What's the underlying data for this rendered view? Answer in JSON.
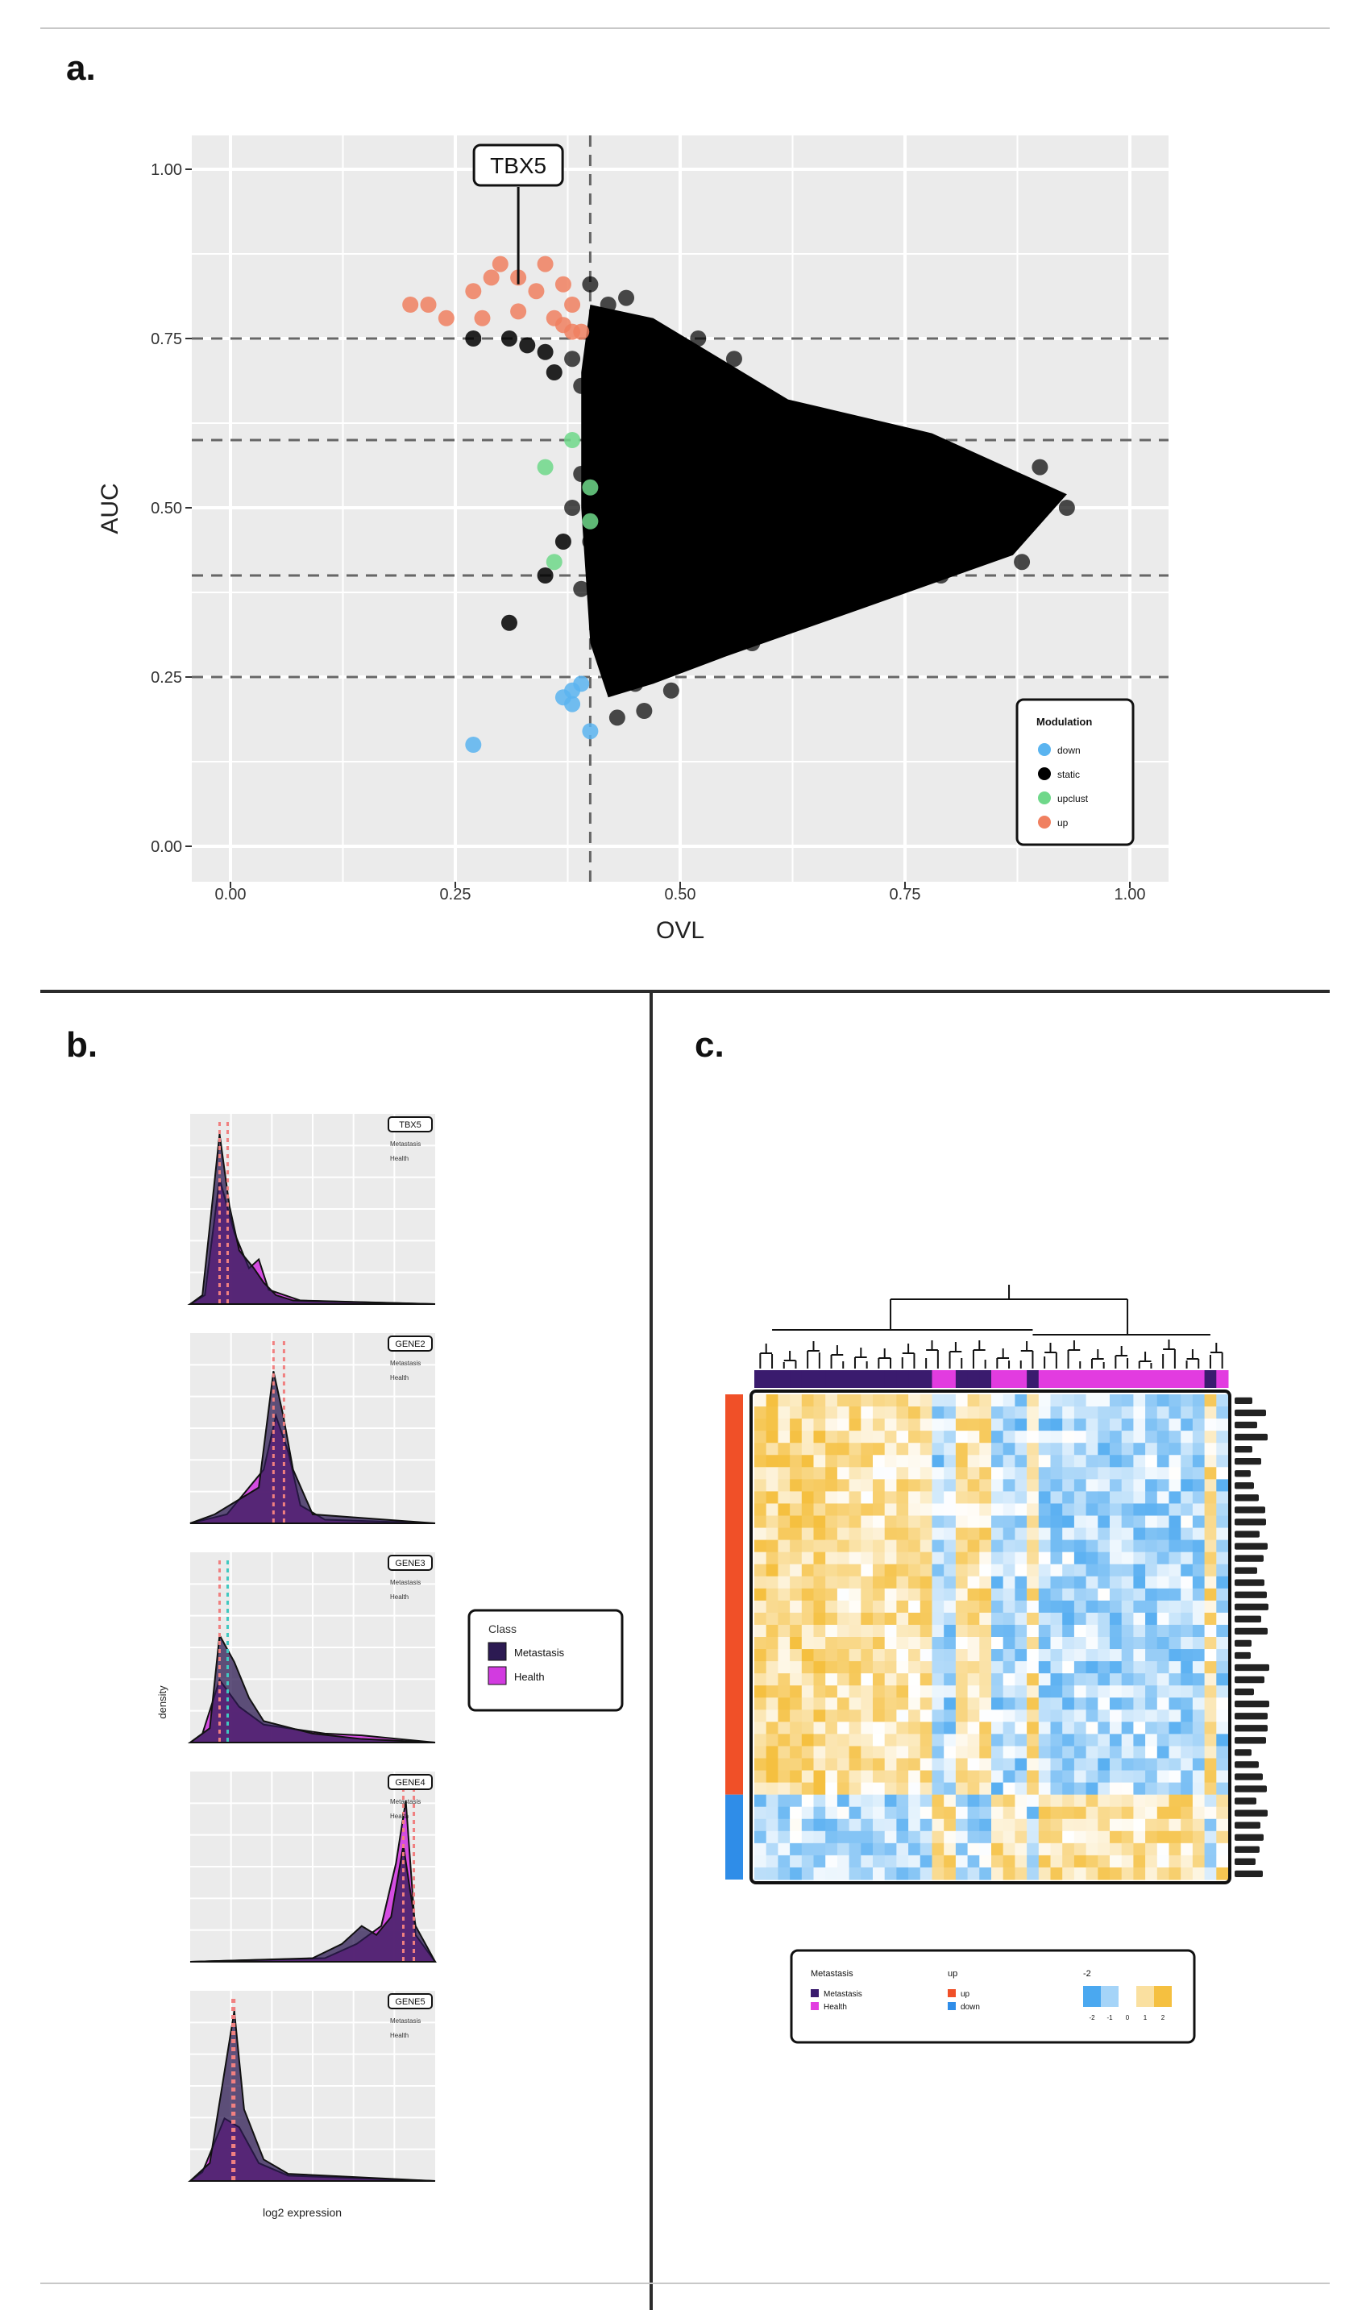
{
  "panels": {
    "a": {
      "letter": "a."
    },
    "b": {
      "letter": "b."
    },
    "c": {
      "letter": "c."
    }
  },
  "chart_data": [
    {
      "panel": "a",
      "type": "scatter",
      "title": "",
      "xlabel": "OVL",
      "ylabel": "AUC",
      "xlim": [
        0,
        1
      ],
      "ylim": [
        0,
        1
      ],
      "xticks": [
        "0.00",
        "0.25",
        "0.50",
        "0.75",
        "1.00"
      ],
      "yticks": [
        "0.00",
        "0.25",
        "0.50",
        "0.75",
        "1.00"
      ],
      "hlines": [
        0.25,
        0.4,
        0.6,
        0.75
      ],
      "vlines": [
        0.4
      ],
      "annotation": {
        "label": "TBX5",
        "x": 0.32,
        "y": 0.83
      },
      "legend": {
        "title": "Modulation",
        "position": "bottom-right",
        "entries": [
          "down",
          "static",
          "upclust",
          "up"
        ]
      },
      "colors": {
        "down": "#5ab4f0",
        "static": "#000000",
        "upclust": "#6fd88a",
        "up": "#f08060"
      },
      "series": [
        {
          "name": "up",
          "points": [
            [
              0.2,
              0.8
            ],
            [
              0.22,
              0.8
            ],
            [
              0.24,
              0.78
            ],
            [
              0.27,
              0.82
            ],
            [
              0.29,
              0.84
            ],
            [
              0.3,
              0.86
            ],
            [
              0.28,
              0.78
            ],
            [
              0.32,
              0.84
            ],
            [
              0.34,
              0.82
            ],
            [
              0.35,
              0.86
            ],
            [
              0.32,
              0.79
            ],
            [
              0.36,
              0.78
            ],
            [
              0.37,
              0.83
            ],
            [
              0.37,
              0.77
            ],
            [
              0.38,
              0.8
            ],
            [
              0.39,
              0.76
            ],
            [
              0.38,
              0.76
            ]
          ]
        },
        {
          "name": "static",
          "points": [
            [
              0.27,
              0.75
            ],
            [
              0.31,
              0.75
            ],
            [
              0.33,
              0.74
            ],
            [
              0.35,
              0.73
            ],
            [
              0.31,
              0.33
            ],
            [
              0.35,
              0.4
            ],
            [
              0.36,
              0.7
            ],
            [
              0.37,
              0.45
            ]
          ]
        },
        {
          "name": "upclust",
          "points": [
            [
              0.35,
              0.56
            ],
            [
              0.38,
              0.6
            ],
            [
              0.4,
              0.53
            ],
            [
              0.36,
              0.42
            ],
            [
              0.4,
              0.48
            ]
          ]
        },
        {
          "name": "down",
          "points": [
            [
              0.27,
              0.15
            ],
            [
              0.37,
              0.22
            ],
            [
              0.38,
              0.21
            ],
            [
              0.39,
              0.24
            ],
            [
              0.38,
              0.23
            ],
            [
              0.4,
              0.17
            ]
          ]
        }
      ],
      "cloud_outline": [
        [
          0.4,
          0.8
        ],
        [
          0.47,
          0.78
        ],
        [
          0.62,
          0.66
        ],
        [
          0.78,
          0.61
        ],
        [
          0.93,
          0.52
        ],
        [
          0.87,
          0.43
        ],
        [
          0.7,
          0.35
        ],
        [
          0.55,
          0.28
        ],
        [
          0.47,
          0.24
        ],
        [
          0.42,
          0.22
        ],
        [
          0.4,
          0.3
        ],
        [
          0.39,
          0.5
        ],
        [
          0.39,
          0.7
        ]
      ],
      "cloud_fringe": [
        [
          0.4,
          0.83
        ],
        [
          0.42,
          0.8
        ],
        [
          0.44,
          0.81
        ],
        [
          0.38,
          0.72
        ],
        [
          0.39,
          0.68
        ],
        [
          0.41,
          0.62
        ],
        [
          0.39,
          0.55
        ],
        [
          0.38,
          0.5
        ],
        [
          0.4,
          0.45
        ],
        [
          0.39,
          0.38
        ],
        [
          0.41,
          0.3
        ],
        [
          0.42,
          0.27
        ],
        [
          0.45,
          0.24
        ],
        [
          0.49,
          0.23
        ],
        [
          0.43,
          0.19
        ],
        [
          0.46,
          0.2
        ],
        [
          0.58,
          0.3
        ],
        [
          0.65,
          0.63
        ],
        [
          0.72,
          0.6
        ],
        [
          0.84,
          0.55
        ],
        [
          0.9,
          0.56
        ],
        [
          0.93,
          0.5
        ],
        [
          0.88,
          0.42
        ],
        [
          0.79,
          0.4
        ],
        [
          0.52,
          0.75
        ],
        [
          0.56,
          0.72
        ]
      ]
    },
    {
      "panel": "b",
      "type": "area",
      "title": "",
      "xlabel": "log2 expression",
      "ylabel": "density",
      "legend": {
        "title": "Class",
        "position": "right",
        "entries": [
          "Metastasis",
          "Health"
        ]
      },
      "colors": {
        "Metastasis": "#2c1a52",
        "Health": "#d23be0"
      },
      "facets": [
        {
          "strip": "TBX5",
          "vline_colors": [
            "#f08080",
            "#f08080"
          ],
          "metastasis": [
            [
              0,
              0
            ],
            [
              0.05,
              0.05
            ],
            [
              0.12,
              0.95
            ],
            [
              0.16,
              0.55
            ],
            [
              0.2,
              0.3
            ],
            [
              0.26,
              0.2
            ],
            [
              0.3,
              0.12
            ],
            [
              0.35,
              0.05
            ],
            [
              0.42,
              0.02
            ],
            [
              1,
              0
            ]
          ],
          "health": [
            [
              0,
              0
            ],
            [
              0.06,
              0.05
            ],
            [
              0.12,
              0.7
            ],
            [
              0.18,
              0.4
            ],
            [
              0.24,
              0.2
            ],
            [
              0.28,
              0.25
            ],
            [
              0.32,
              0.08
            ],
            [
              0.45,
              0.02
            ],
            [
              1,
              0
            ]
          ]
        },
        {
          "strip": "GENE2",
          "vline_colors": [
            "#f08080",
            "#f08080"
          ],
          "metastasis": [
            [
              0,
              0
            ],
            [
              0.1,
              0.05
            ],
            [
              0.28,
              0.2
            ],
            [
              0.34,
              0.85
            ],
            [
              0.38,
              0.6
            ],
            [
              0.42,
              0.3
            ],
            [
              0.5,
              0.05
            ],
            [
              1,
              0
            ]
          ],
          "health": [
            [
              0,
              0
            ],
            [
              0.15,
              0.05
            ],
            [
              0.3,
              0.3
            ],
            [
              0.35,
              0.6
            ],
            [
              0.4,
              0.4
            ],
            [
              0.45,
              0.1
            ],
            [
              0.55,
              0.02
            ],
            [
              1,
              0
            ]
          ]
        },
        {
          "strip": "GENE3",
          "vline_colors": [
            "#f08080",
            "#40c8c0"
          ],
          "metastasis": [
            [
              0,
              0
            ],
            [
              0.08,
              0.08
            ],
            [
              0.12,
              0.6
            ],
            [
              0.18,
              0.45
            ],
            [
              0.24,
              0.25
            ],
            [
              0.3,
              0.12
            ],
            [
              0.5,
              0.05
            ],
            [
              0.7,
              0.02
            ],
            [
              1,
              0
            ]
          ],
          "health": [
            [
              0,
              0
            ],
            [
              0.05,
              0.05
            ],
            [
              0.12,
              0.35
            ],
            [
              0.2,
              0.2
            ],
            [
              0.3,
              0.1
            ],
            [
              0.55,
              0.05
            ],
            [
              0.7,
              0.04
            ],
            [
              1,
              0
            ]
          ]
        },
        {
          "strip": "GENE4",
          "vline_colors": [
            "#f08080",
            "#f08080"
          ],
          "metastasis": [
            [
              0,
              0
            ],
            [
              0.5,
              0.02
            ],
            [
              0.62,
              0.1
            ],
            [
              0.7,
              0.2
            ],
            [
              0.76,
              0.15
            ],
            [
              0.82,
              0.25
            ],
            [
              0.87,
              0.65
            ],
            [
              0.92,
              0.2
            ],
            [
              1,
              0
            ]
          ],
          "health": [
            [
              0,
              0
            ],
            [
              0.55,
              0.02
            ],
            [
              0.68,
              0.1
            ],
            [
              0.78,
              0.2
            ],
            [
              0.84,
              0.55
            ],
            [
              0.88,
              0.9
            ],
            [
              0.92,
              0.15
            ],
            [
              1,
              0
            ]
          ]
        },
        {
          "strip": "GENE5",
          "vline_colors": [
            "#f08080",
            "#f08080"
          ],
          "metastasis": [
            [
              0,
              0
            ],
            [
              0.08,
              0.1
            ],
            [
              0.18,
              0.95
            ],
            [
              0.22,
              0.4
            ],
            [
              0.3,
              0.12
            ],
            [
              0.4,
              0.04
            ],
            [
              1,
              0
            ]
          ],
          "health": [
            [
              0,
              0
            ],
            [
              0.05,
              0.05
            ],
            [
              0.14,
              0.35
            ],
            [
              0.2,
              0.3
            ],
            [
              0.28,
              0.1
            ],
            [
              0.4,
              0.03
            ],
            [
              1,
              0
            ]
          ]
        }
      ]
    },
    {
      "panel": "c",
      "type": "heatmap",
      "title": "",
      "rows": 40,
      "cols": 40,
      "column_class_pattern": [
        "Metastasis",
        "Metastasis",
        "Metastasis",
        "Metastasis",
        "Metastasis",
        "Metastasis",
        "Metastasis",
        "Metastasis",
        "Metastasis",
        "Metastasis",
        "Metastasis",
        "Metastasis",
        "Metastasis",
        "Metastasis",
        "Metastasis",
        "Health",
        "Health",
        "Metastasis",
        "Metastasis",
        "Metastasis",
        "Health",
        "Health",
        "Health",
        "Metastasis",
        "Health",
        "Health",
        "Health",
        "Health",
        "Health",
        "Health",
        "Health",
        "Health",
        "Health",
        "Health",
        "Health",
        "Health",
        "Health",
        "Health",
        "Metastasis",
        "Health"
      ],
      "row_modulation_split": {
        "up": 33,
        "down": 7
      },
      "value_range": [
        -2,
        2
      ],
      "legend": {
        "Class": [
          "Metastasis",
          "Health"
        ],
        "Modulation": [
          "up",
          "down"
        ],
        "z-score": [
          "-2",
          "-1",
          "0",
          "1",
          "2"
        ]
      },
      "colors": {
        "low": "#4aa8f0",
        "mid": "#ffffff",
        "high": "#f5c040",
        "up_bar": "#f05028",
        "down_bar": "#2f8de8",
        "metastasis_bar": "#3a1b6e",
        "health_bar": "#e23ce0"
      }
    }
  ]
}
